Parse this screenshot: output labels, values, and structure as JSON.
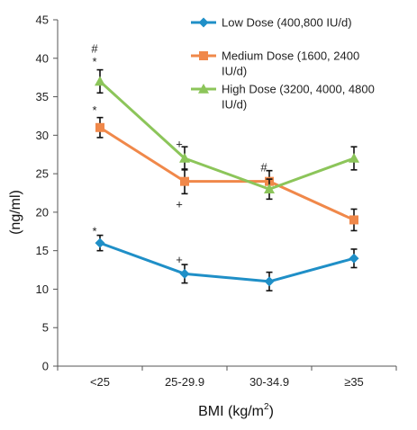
{
  "chart_data": {
    "type": "line",
    "categories": [
      "<25",
      "25-29.9",
      "30-34.9",
      "≥35"
    ],
    "xlabel_main": "BMI (kg/m",
    "xlabel_sup": "2",
    "xlabel_close": ")",
    "ylabel": "(ng/ml)",
    "ylim": [
      0,
      45
    ],
    "yticks": [
      0,
      5,
      10,
      15,
      20,
      25,
      30,
      35,
      40,
      45
    ],
    "grid": false,
    "legend_position": "top-right",
    "series": [
      {
        "name_lines": [
          "Low Dose (400,800 IU/d)"
        ],
        "values": [
          16,
          12,
          11,
          14
        ],
        "errors": [
          1.0,
          1.2,
          1.2,
          1.2
        ],
        "color": "#1f8fc7",
        "marker": "diamond"
      },
      {
        "name_lines": [
          "Medium Dose (1600, 2400",
          "IU/d)"
        ],
        "values": [
          31,
          24,
          24,
          19
        ],
        "errors": [
          1.3,
          1.6,
          1.4,
          1.4
        ],
        "color": "#f0884a",
        "marker": "square"
      },
      {
        "name_lines": [
          "High Dose (3200, 4000, 4800",
          "IU/d)"
        ],
        "values": [
          37,
          27,
          23,
          27
        ],
        "errors": [
          1.5,
          1.5,
          1.3,
          1.5
        ],
        "color": "#8cc55a",
        "marker": "triangle"
      }
    ],
    "annotations": [
      {
        "text": "#",
        "category": 0,
        "y": 41.2
      },
      {
        "text": "*",
        "category": 0,
        "y": 39.5
      },
      {
        "text": "*",
        "category": 0,
        "y": 33.2
      },
      {
        "text": "*",
        "category": 0,
        "y": 17.5
      },
      {
        "text": "+",
        "category": 1,
        "y": 28.8
      },
      {
        "text": "+",
        "category": 1,
        "y": 21.0
      },
      {
        "text": "+",
        "category": 1,
        "y": 13.8
      },
      {
        "text": "#",
        "category": 2,
        "y": 25.8
      }
    ]
  }
}
